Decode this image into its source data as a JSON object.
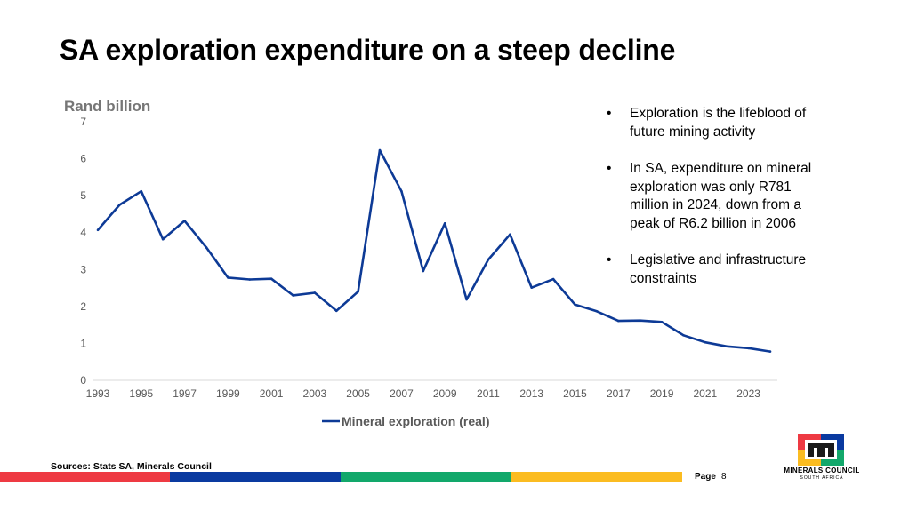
{
  "title": "SA exploration expenditure on a steep decline",
  "bullets": [
    "Exploration is the lifeblood of future mining activity",
    "In SA, expenditure on mineral exploration was only R781 million in 2024, down from a peak of R6.2 billion in 2006",
    "Legislative and infrastructure constraints"
  ],
  "bullet_symbol": "•",
  "footer": {
    "sources": "Sources: Stats SA, Minerals Council",
    "page_label": "Page",
    "page_number": "8",
    "logo_name": "MINERALS COUNCIL",
    "logo_sub": "SOUTH AFRICA"
  },
  "colors": {
    "line": "#0d3a96",
    "stripe_red": "#ee3a43",
    "stripe_blue": "#0a3aa0",
    "stripe_green": "#12a86b",
    "stripe_yellow": "#fbbc21"
  },
  "chart_data": {
    "type": "line",
    "ylabel": "Rand billion",
    "ylim": [
      0,
      7
    ],
    "yticks": [
      0,
      1,
      2,
      3,
      4,
      5,
      6,
      7
    ],
    "xtick_labels": [
      "1993",
      "1995",
      "1997",
      "1999",
      "2001",
      "2003",
      "2005",
      "2007",
      "2009",
      "2011",
      "2013",
      "2015",
      "2017",
      "2019",
      "2021",
      "2023"
    ],
    "x": [
      1993,
      1994,
      1995,
      1996,
      1997,
      1998,
      1999,
      2000,
      2001,
      2002,
      2003,
      2004,
      2005,
      2006,
      2007,
      2008,
      2009,
      2010,
      2011,
      2012,
      2013,
      2014,
      2015,
      2016,
      2017,
      2018,
      2019,
      2020,
      2021,
      2022,
      2023,
      2024
    ],
    "series": [
      {
        "name": "Mineral exploration (real)",
        "values": [
          4.07,
          4.75,
          5.12,
          3.82,
          4.32,
          3.6,
          2.78,
          2.73,
          2.75,
          2.3,
          2.37,
          1.88,
          2.4,
          6.23,
          5.12,
          2.96,
          4.25,
          2.19,
          3.27,
          3.95,
          2.51,
          2.74,
          2.05,
          1.87,
          1.61,
          1.62,
          1.58,
          1.22,
          1.03,
          0.92,
          0.87,
          0.78
        ]
      }
    ],
    "legend": "bottom"
  }
}
